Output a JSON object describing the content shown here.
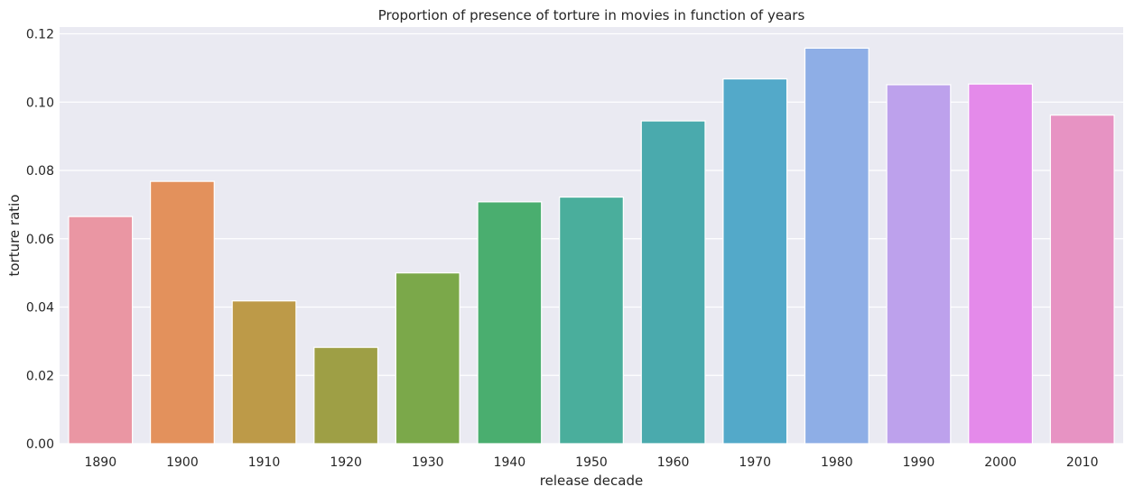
{
  "chart_data": {
    "type": "bar",
    "title": "Proportion of presence of torture in movies in function of years",
    "xlabel": "release decade",
    "ylabel": "torture ratio",
    "categories": [
      "1890",
      "1900",
      "1910",
      "1920",
      "1930",
      "1940",
      "1950",
      "1960",
      "1970",
      "1980",
      "1990",
      "2000",
      "2010"
    ],
    "values": [
      0.0665,
      0.0768,
      0.0418,
      0.0282,
      0.05,
      0.0708,
      0.0722,
      0.0945,
      0.1068,
      0.1158,
      0.1051,
      0.1053,
      0.0962
    ],
    "colors": [
      "#ea96a3",
      "#e3915c",
      "#bd9a48",
      "#9e9f45",
      "#7ba84a",
      "#4aae6f",
      "#4aae9c",
      "#4aaaad",
      "#53a9c9",
      "#8eaee6",
      "#bda1ec",
      "#e48aea",
      "#e793c3"
    ],
    "ylim": [
      0,
      0.12
    ],
    "yticks": [
      0.0,
      0.02,
      0.04,
      0.06,
      0.08,
      0.1,
      0.12
    ],
    "ytick_labels": [
      "0.00",
      "0.02",
      "0.04",
      "0.06",
      "0.08",
      "0.10",
      "0.12"
    ],
    "grid": true,
    "style": "seaborn-darkgrid",
    "background_color": "#eaeaf2"
  }
}
